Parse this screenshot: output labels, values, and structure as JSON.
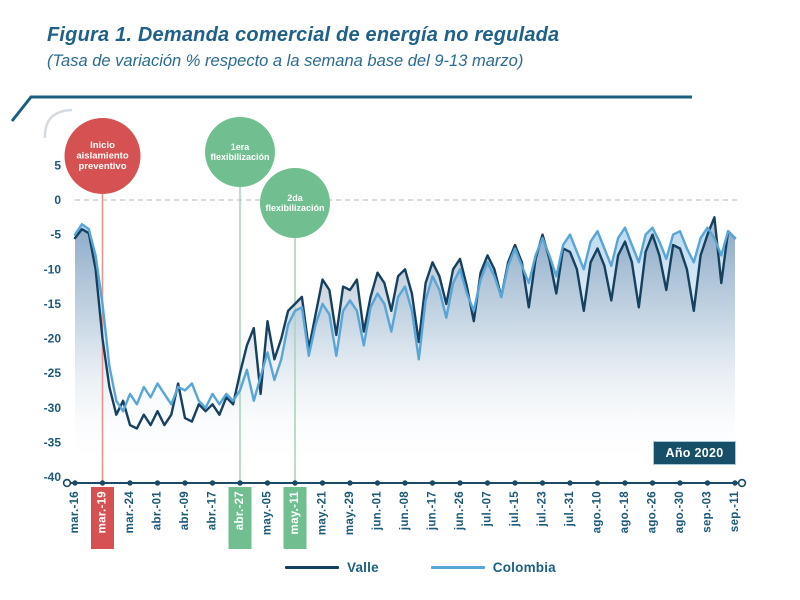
{
  "header": {
    "title": "Figura 1. Demanda comercial de energía no regulada",
    "subtitle": "(Tasa de variación % respecto a la semana base del  9-13 marzo)"
  },
  "badge": {
    "label": "Año 2020"
  },
  "legend": [
    {
      "label": "Valle",
      "color": "#16405f"
    },
    {
      "label": "Colombia",
      "color": "#58a5d8"
    }
  ],
  "chart_data": {
    "type": "line",
    "title": "Demanda comercial de energía no regulada",
    "subtitle": "Tasa de variación % respecto a la semana base del 9-13 marzo",
    "xlabel": "",
    "ylabel": "Tasa de variación (%)",
    "ylim": [
      -40,
      5
    ],
    "grid": "dashed zero line only",
    "legend_position": "bottom",
    "y_ticks": [
      5,
      0,
      -5,
      -10,
      -15,
      -20,
      -25,
      -30,
      -35,
      -40
    ],
    "x_tick_labels": [
      "mar.-16",
      "mar.-19",
      "mar.-24",
      "abr.-01",
      "abr.-09",
      "abr.-17",
      "abr.-27",
      "may.-05",
      "may.-11",
      "may.-21",
      "may.-29",
      "jun.-01",
      "jun.-08",
      "jun.-17",
      "jun.-26",
      "jul.-07",
      "jul.-15",
      "jul.-23",
      "jul.-31",
      "ago.-10",
      "ago.-18",
      "ago.-26",
      "ago.-30",
      "sep.-03",
      "sep.-11"
    ],
    "highlighted_ticks": [
      {
        "index": 1,
        "label": "mar.-19",
        "box_color": "#d65151",
        "text_color": "#ffffff"
      },
      {
        "index": 6,
        "label": "abr.-27",
        "box_color": "#71bf90",
        "text_color": "#ffffff"
      },
      {
        "index": 8,
        "label": "may.-11",
        "box_color": "#71bf90",
        "text_color": "#ffffff"
      }
    ],
    "annotations": [
      {
        "lines": [
          "Inicio",
          "aislamiento",
          "preventivo"
        ],
        "tick_index": 1,
        "color": "#d65151",
        "stem_color": "#e9958d"
      },
      {
        "lines": [
          "1era",
          "flexibilización"
        ],
        "tick_index": 6,
        "color": "#71bf90",
        "stem_color": "#a8d6ba"
      },
      {
        "lines": [
          "2da",
          "flexibilización"
        ],
        "tick_index": 8,
        "color": "#71bf90",
        "stem_color": "#a8d6ba"
      }
    ],
    "series": [
      {
        "name": "Valle",
        "color": "#16405f",
        "values": [
          -5.5,
          -4.2,
          -4.8,
          -10,
          -20,
          -27,
          -31,
          -29,
          -32.5,
          -33,
          -31,
          -32.5,
          -30.5,
          -32.5,
          -31,
          -26.5,
          -31.5,
          -32,
          -29.5,
          -30.5,
          -29.5,
          -31,
          -28.5,
          -29.5,
          -25,
          -21,
          -18.5,
          -28,
          -17.5,
          -23,
          -20,
          -16,
          -15,
          -14,
          -21.5,
          -16.5,
          -11.5,
          -13,
          -19.5,
          -12.5,
          -13,
          -11.5,
          -19,
          -14,
          -10.5,
          -12,
          -16,
          -11,
          -10,
          -13.5,
          -20.5,
          -12,
          -9,
          -11,
          -15,
          -10,
          -8.5,
          -12.5,
          -17.5,
          -10.5,
          -8,
          -10,
          -14,
          -9,
          -6.5,
          -9,
          -15.5,
          -8.5,
          -5,
          -8.5,
          -13.5,
          -7,
          -7.5,
          -10,
          -16,
          -9,
          -7,
          -9.5,
          -14.5,
          -8,
          -6,
          -9,
          -15.5,
          -7.5,
          -5,
          -8,
          -13,
          -6.5,
          -7,
          -10,
          -16,
          -8,
          -5,
          -2.5,
          -12,
          -4.5,
          -5.5
        ]
      },
      {
        "name": "Colombia",
        "color": "#58a5d8",
        "values": [
          -5,
          -3.5,
          -4.2,
          -8,
          -15,
          -24,
          -29,
          -30.5,
          -28,
          -29.5,
          -27,
          -28.5,
          -26.5,
          -28,
          -29.5,
          -27,
          -27.5,
          -26.5,
          -29,
          -30,
          -28,
          -29.5,
          -28,
          -29,
          -27.5,
          -24.5,
          -29,
          -25.5,
          -22,
          -26,
          -23,
          -18,
          -16,
          -15.5,
          -22.5,
          -18,
          -15,
          -16.5,
          -22.5,
          -16,
          -14.5,
          -16,
          -21,
          -15.5,
          -13.5,
          -15,
          -19,
          -14,
          -12.5,
          -16,
          -23,
          -14.5,
          -11,
          -13,
          -17,
          -12,
          -10,
          -13.5,
          -16,
          -11.5,
          -9,
          -11,
          -14,
          -9.5,
          -7,
          -9.5,
          -12,
          -8,
          -5.5,
          -8,
          -11,
          -6.5,
          -5,
          -7.5,
          -10,
          -6,
          -4.5,
          -7,
          -9.5,
          -5.5,
          -4,
          -6.5,
          -9,
          -5,
          -4,
          -6,
          -8.5,
          -5,
          -4.5,
          -7,
          -9,
          -5.5,
          -4,
          -5.5,
          -8,
          -4.5,
          -5.5
        ]
      }
    ],
    "year_badge": "Año 2020"
  }
}
